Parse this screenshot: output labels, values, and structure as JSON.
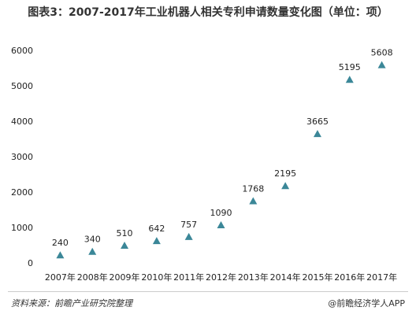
{
  "chart_data": {
    "type": "scatter",
    "marker": "triangle",
    "title": "图表3：2007-2017年工业机器人相关专利申请数量变化图（单位：项）",
    "categories": [
      "2007年",
      "2008年",
      "2009年",
      "2010年",
      "2011年",
      "2012年",
      "2013年",
      "2014年",
      "2015年",
      "2016年",
      "2017年"
    ],
    "values": [
      240,
      340,
      510,
      642,
      757,
      1090,
      1768,
      2195,
      3665,
      5195,
      5608
    ],
    "color": "#3b8798",
    "ylim": [
      0,
      6000
    ],
    "yticks": [
      0,
      1000,
      2000,
      3000,
      4000,
      5000,
      6000
    ],
    "grid": false
  },
  "footer": {
    "source": "资料来源：前瞻产业研究院整理",
    "credit": "@前瞻经济学人APP"
  }
}
